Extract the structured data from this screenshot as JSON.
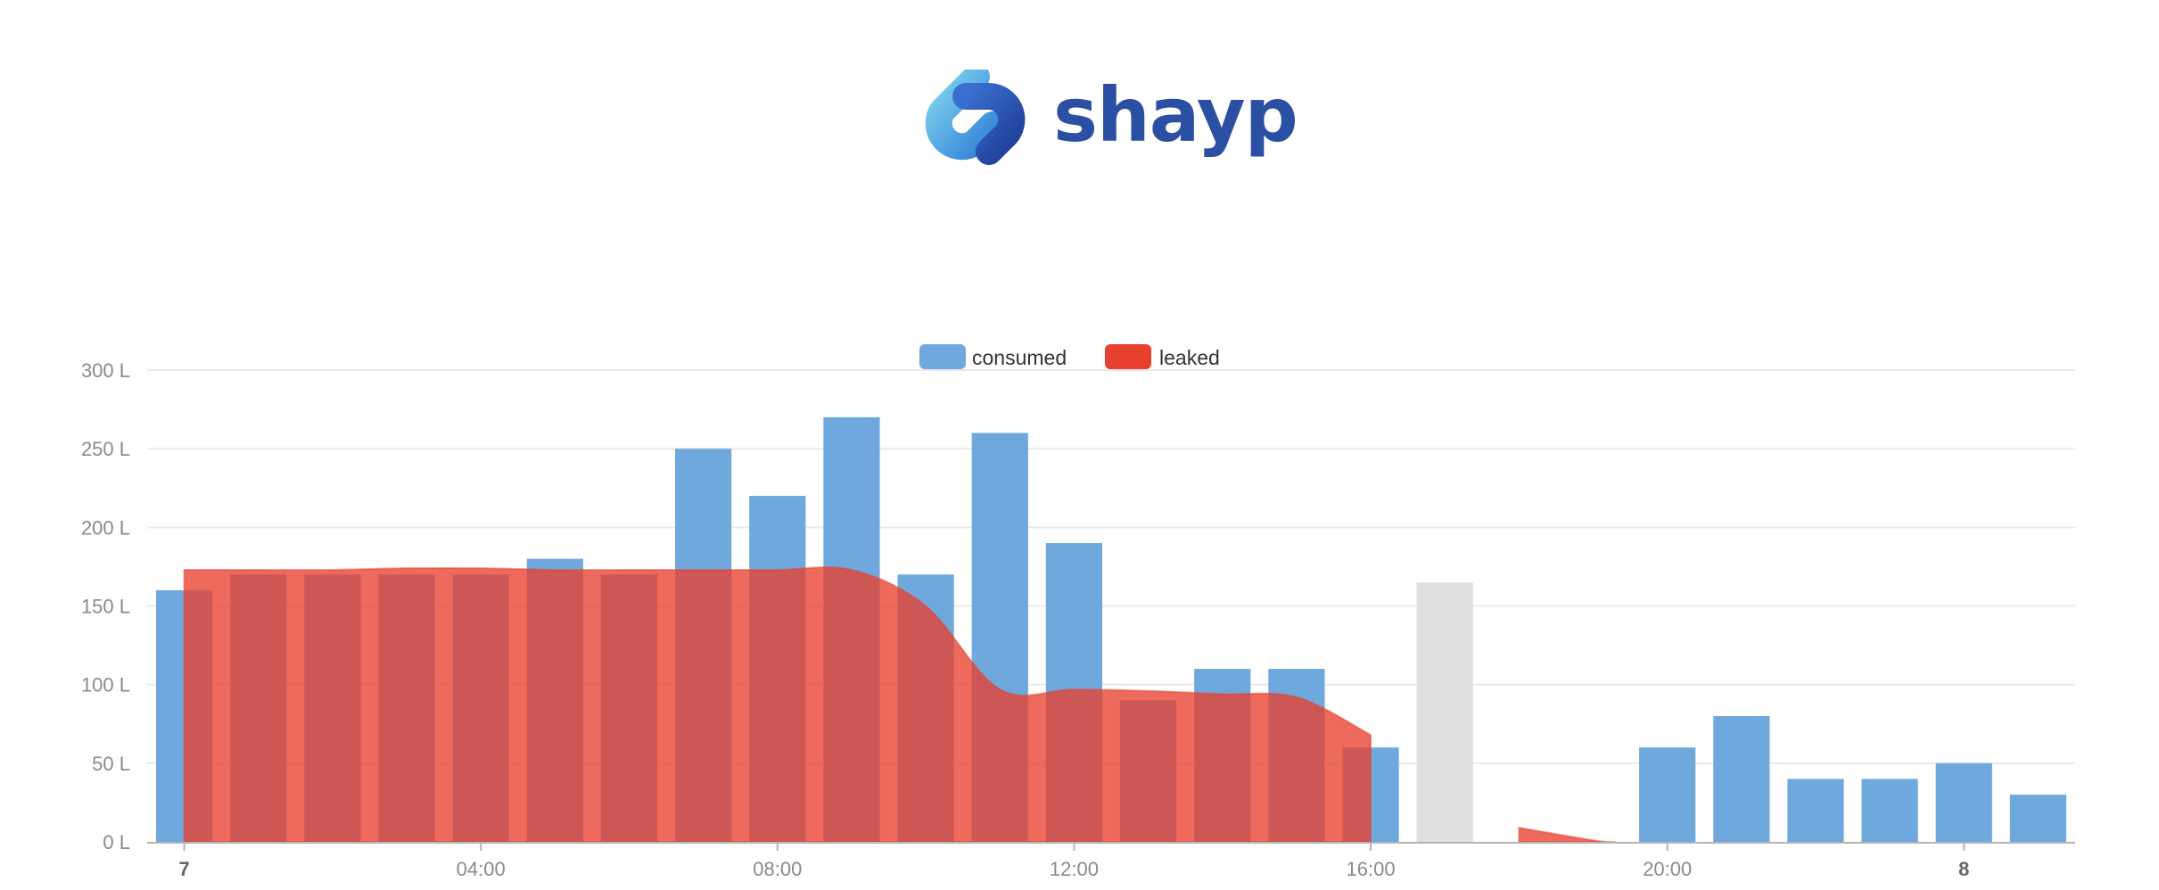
{
  "brand": {
    "name": "shayp"
  },
  "colors": {
    "consumed": "#6fa8dc",
    "leaked": "#e8402f",
    "estimated": "#e0e0e2",
    "grid": "#e9e9ec",
    "brand": "#2a4fa3"
  },
  "chart_data": {
    "type": "bar",
    "legend": {
      "position": "top",
      "entries": [
        "consumed",
        "leaked"
      ]
    },
    "y_ticks": [
      "0 L",
      "50 L",
      "100 L",
      "150 L",
      "200 L",
      "250 L",
      "300 L"
    ],
    "ylim": [
      0,
      300
    ],
    "x_ticks": [
      {
        "label": "7",
        "hour": 0.5,
        "bold": true
      },
      {
        "label": "04:00",
        "hour": 4.5,
        "bold": false
      },
      {
        "label": "08:00",
        "hour": 8.5,
        "bold": false
      },
      {
        "label": "12:00",
        "hour": 12.5,
        "bold": false
      },
      {
        "label": "16:00",
        "hour": 16.5,
        "bold": false
      },
      {
        "label": "20:00",
        "hour": 20.5,
        "bold": false
      },
      {
        "label": "8",
        "hour": 24.5,
        "bold": true
      }
    ],
    "grid": true,
    "series": [
      {
        "name": "consumed",
        "type": "bar",
        "values": [
          160,
          170,
          170,
          170,
          170,
          180,
          170,
          250,
          220,
          270,
          170,
          260,
          190,
          90,
          110,
          110,
          60,
          165,
          0,
          0,
          60,
          80,
          40,
          40,
          50,
          30
        ],
        "estimated_index": 17
      },
      {
        "name": "leaked",
        "type": "area",
        "segments": [
          {
            "x": [
              0.5,
              1.5,
              2.5,
              3.5,
              4.5,
              5.5,
              6.5,
              7.5,
              8.5,
              9.5,
              10.5,
              11.5,
              12.5,
              13.5,
              14.5,
              15.5,
              16.5
            ],
            "y": [
              173,
              173,
              173,
              174,
              174,
              173,
              173,
              173,
              173,
              173,
              150,
              97,
              97,
              96,
              94,
              92,
              68
            ]
          },
          {
            "x": [
              18.5,
              19.5,
              19.8
            ],
            "y": [
              9,
              1,
              0
            ]
          }
        ]
      }
    ]
  }
}
